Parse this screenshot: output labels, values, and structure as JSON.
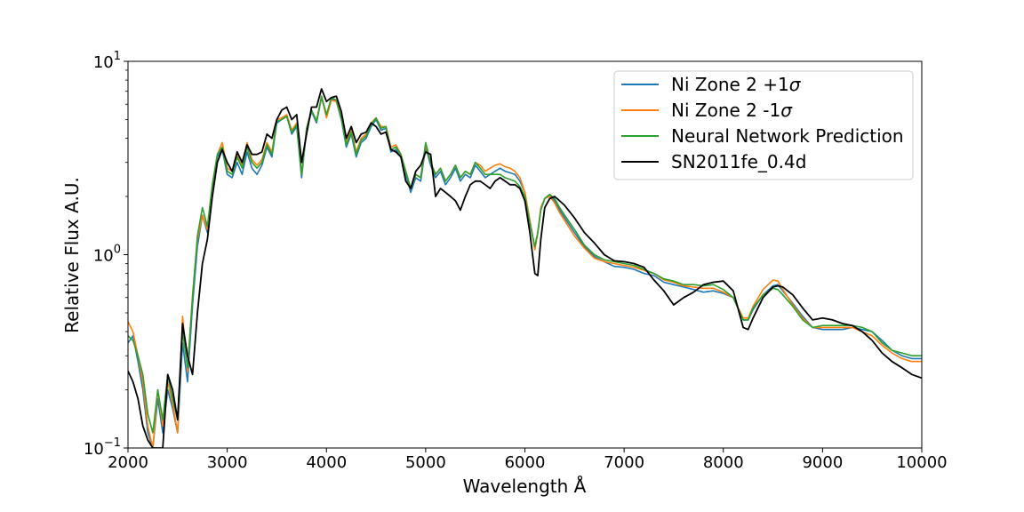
{
  "chart_data": {
    "type": "line",
    "xlabel": "Wavelength Å",
    "ylabel": "Relative Flux A.U.",
    "xlim": [
      2000,
      10000
    ],
    "ylim": [
      0.1,
      10
    ],
    "yscale": "log",
    "grid": false,
    "legend_position": "top-right",
    "x_ticks": [
      "2000",
      "3000",
      "4000",
      "5000",
      "6000",
      "7000",
      "8000",
      "9000",
      "10000"
    ],
    "y_ticks": [
      {
        "base": "10",
        "exp": "−1",
        "value": 0.1
      },
      {
        "base": "10",
        "exp": "0",
        "value": 1
      },
      {
        "base": "10",
        "exp": "1",
        "value": 10
      }
    ],
    "series": [
      {
        "name": "Ni Zone 2 +1σ",
        "label_main": "Ni Zone 2 +1",
        "label_sym": "σ",
        "color": "#1f77b4",
        "x": [
          2000,
          2050,
          2100,
          2150,
          2200,
          2250,
          2300,
          2350,
          2400,
          2450,
          2500,
          2550,
          2600,
          2650,
          2700,
          2750,
          2800,
          2850,
          2900,
          2950,
          3000,
          3050,
          3100,
          3150,
          3200,
          3250,
          3300,
          3350,
          3400,
          3450,
          3500,
          3550,
          3600,
          3650,
          3700,
          3750,
          3800,
          3850,
          3900,
          3950,
          4000,
          4050,
          4100,
          4150,
          4200,
          4250,
          4300,
          4350,
          4400,
          4450,
          4500,
          4550,
          4600,
          4650,
          4700,
          4750,
          4800,
          4850,
          4900,
          4950,
          5000,
          5050,
          5100,
          5150,
          5200,
          5250,
          5300,
          5350,
          5400,
          5450,
          5500,
          5550,
          5600,
          5650,
          5700,
          5750,
          5800,
          5850,
          5900,
          5950,
          6000,
          6050,
          6100,
          6130,
          6160,
          6200,
          6250,
          6300,
          6350,
          6400,
          6500,
          6600,
          6700,
          6800,
          6900,
          7000,
          7100,
          7200,
          7300,
          7400,
          7500,
          7600,
          7700,
          7800,
          7900,
          8000,
          8100,
          8200,
          8250,
          8300,
          8400,
          8500,
          8550,
          8600,
          8700,
          8800,
          8900,
          9000,
          9100,
          9200,
          9300,
          9400,
          9500,
          9600,
          9700,
          9800,
          9900,
          10000
        ],
        "y": [
          0.35,
          0.38,
          0.28,
          0.2,
          0.12,
          0.1,
          0.18,
          0.12,
          0.2,
          0.16,
          0.12,
          0.35,
          0.22,
          0.55,
          1.1,
          1.6,
          1.3,
          2.2,
          3.2,
          3.5,
          2.6,
          2.5,
          3.0,
          2.6,
          3.4,
          2.8,
          2.6,
          2.9,
          3.6,
          3.2,
          4.8,
          5.0,
          5.2,
          4.2,
          4.6,
          2.5,
          4.4,
          5.5,
          4.8,
          6.5,
          5.2,
          6.4,
          6.2,
          5.0,
          3.6,
          4.2,
          3.2,
          3.8,
          4.0,
          4.6,
          5.0,
          4.4,
          4.5,
          3.4,
          3.5,
          3.2,
          2.6,
          2.1,
          2.5,
          2.4,
          3.6,
          2.9,
          2.5,
          2.7,
          2.3,
          2.5,
          2.8,
          2.4,
          2.6,
          2.5,
          2.9,
          2.7,
          2.5,
          2.6,
          2.7,
          2.8,
          2.7,
          2.65,
          2.6,
          2.4,
          2.1,
          1.5,
          1.08,
          1.3,
          1.7,
          1.95,
          2.05,
          1.9,
          1.7,
          1.55,
          1.3,
          1.1,
          0.98,
          0.92,
          0.87,
          0.86,
          0.84,
          0.8,
          0.78,
          0.72,
          0.7,
          0.68,
          0.66,
          0.64,
          0.65,
          0.63,
          0.6,
          0.46,
          0.46,
          0.52,
          0.62,
          0.69,
          0.7,
          0.65,
          0.56,
          0.48,
          0.42,
          0.41,
          0.41,
          0.41,
          0.42,
          0.41,
          0.4,
          0.36,
          0.32,
          0.3,
          0.29,
          0.29
        ]
      },
      {
        "name": "Ni Zone 2 -1σ",
        "label_main": "Ni Zone 2 -1",
        "label_sym": "σ",
        "color": "#ff7f0e",
        "x": [
          2000,
          2050,
          2100,
          2150,
          2200,
          2250,
          2300,
          2350,
          2400,
          2450,
          2500,
          2550,
          2600,
          2650,
          2700,
          2750,
          2800,
          2850,
          2900,
          2950,
          3000,
          3050,
          3100,
          3150,
          3200,
          3250,
          3300,
          3350,
          3400,
          3450,
          3500,
          3550,
          3600,
          3650,
          3700,
          3750,
          3800,
          3850,
          3900,
          3950,
          4000,
          4050,
          4100,
          4150,
          4200,
          4250,
          4300,
          4350,
          4400,
          4450,
          4500,
          4550,
          4600,
          4650,
          4700,
          4750,
          4800,
          4850,
          4900,
          4950,
          5000,
          5050,
          5100,
          5150,
          5200,
          5250,
          5300,
          5350,
          5400,
          5450,
          5500,
          5550,
          5600,
          5650,
          5700,
          5750,
          5800,
          5850,
          5900,
          5950,
          6000,
          6050,
          6100,
          6130,
          6160,
          6200,
          6250,
          6300,
          6350,
          6400,
          6500,
          6600,
          6700,
          6800,
          6900,
          7000,
          7100,
          7200,
          7300,
          7400,
          7500,
          7600,
          7700,
          7800,
          7900,
          8000,
          8100,
          8200,
          8250,
          8300,
          8400,
          8500,
          8550,
          8600,
          8700,
          8800,
          8900,
          9000,
          9100,
          9200,
          9300,
          9400,
          9500,
          9600,
          9700,
          9800,
          9900,
          10000
        ],
        "y": [
          0.45,
          0.4,
          0.3,
          0.22,
          0.13,
          0.1,
          0.2,
          0.13,
          0.22,
          0.17,
          0.12,
          0.48,
          0.25,
          0.62,
          1.2,
          1.6,
          1.35,
          2.3,
          3.3,
          3.8,
          2.8,
          2.7,
          3.3,
          2.9,
          3.8,
          3.1,
          2.9,
          3.1,
          3.8,
          3.4,
          5.0,
          5.1,
          5.3,
          4.4,
          4.8,
          2.6,
          4.5,
          5.6,
          4.9,
          6.6,
          5.1,
          6.3,
          6.2,
          5.1,
          3.8,
          4.4,
          3.4,
          4.0,
          4.2,
          4.8,
          5.1,
          4.6,
          4.6,
          3.6,
          3.7,
          3.3,
          2.7,
          2.2,
          2.6,
          2.5,
          3.7,
          3.0,
          2.6,
          2.8,
          2.4,
          2.6,
          2.9,
          2.5,
          2.7,
          2.6,
          3.0,
          2.9,
          2.7,
          2.8,
          2.9,
          2.95,
          2.85,
          2.8,
          2.7,
          2.5,
          2.1,
          1.5,
          1.06,
          1.3,
          1.75,
          1.95,
          2.0,
          1.85,
          1.65,
          1.5,
          1.25,
          1.08,
          0.96,
          0.92,
          0.9,
          0.88,
          0.86,
          0.83,
          0.8,
          0.74,
          0.72,
          0.69,
          0.68,
          0.67,
          0.67,
          0.64,
          0.6,
          0.47,
          0.47,
          0.54,
          0.66,
          0.74,
          0.73,
          0.66,
          0.55,
          0.47,
          0.42,
          0.42,
          0.42,
          0.42,
          0.42,
          0.4,
          0.38,
          0.34,
          0.31,
          0.29,
          0.28,
          0.28
        ]
      },
      {
        "name": "Neural Network Prediction",
        "color": "#2ca02c",
        "x": [
          2000,
          2050,
          2100,
          2150,
          2200,
          2250,
          2300,
          2350,
          2400,
          2450,
          2500,
          2550,
          2600,
          2650,
          2700,
          2750,
          2800,
          2850,
          2900,
          2950,
          3000,
          3050,
          3100,
          3150,
          3200,
          3250,
          3300,
          3350,
          3400,
          3450,
          3500,
          3550,
          3600,
          3650,
          3700,
          3750,
          3800,
          3850,
          3900,
          3950,
          4000,
          4050,
          4100,
          4150,
          4200,
          4250,
          4300,
          4350,
          4400,
          4450,
          4500,
          4550,
          4600,
          4650,
          4700,
          4750,
          4800,
          4850,
          4900,
          4950,
          5000,
          5050,
          5100,
          5150,
          5200,
          5250,
          5300,
          5350,
          5400,
          5450,
          5500,
          5550,
          5600,
          5650,
          5700,
          5750,
          5800,
          5850,
          5900,
          5950,
          6000,
          6050,
          6100,
          6130,
          6160,
          6200,
          6250,
          6300,
          6350,
          6400,
          6500,
          6600,
          6700,
          6800,
          6900,
          7000,
          7100,
          7200,
          7300,
          7400,
          7500,
          7600,
          7700,
          7800,
          7900,
          8000,
          8100,
          8200,
          8250,
          8300,
          8400,
          8500,
          8550,
          8600,
          8700,
          8800,
          8900,
          9000,
          9100,
          9200,
          9300,
          9400,
          9500,
          9600,
          9700,
          9800,
          9900,
          10000
        ],
        "y": [
          0.38,
          0.36,
          0.3,
          0.24,
          0.15,
          0.12,
          0.2,
          0.14,
          0.24,
          0.18,
          0.14,
          0.4,
          0.26,
          0.6,
          1.25,
          1.75,
          1.4,
          2.3,
          3.3,
          3.6,
          2.7,
          2.6,
          3.2,
          2.8,
          3.6,
          3.0,
          2.8,
          3.0,
          3.7,
          3.3,
          4.9,
          5.0,
          5.2,
          4.3,
          4.7,
          2.6,
          4.5,
          5.6,
          4.9,
          6.6,
          5.3,
          6.5,
          6.3,
          5.1,
          3.7,
          4.3,
          3.3,
          3.9,
          4.1,
          4.7,
          5.1,
          4.5,
          4.6,
          3.5,
          3.6,
          3.3,
          2.7,
          2.2,
          2.6,
          2.5,
          3.8,
          3.0,
          2.6,
          2.8,
          2.4,
          2.6,
          2.9,
          2.5,
          2.7,
          2.6,
          3.0,
          2.8,
          2.6,
          2.6,
          2.6,
          2.6,
          2.5,
          2.45,
          2.4,
          2.25,
          2.0,
          1.45,
          1.1,
          1.3,
          1.7,
          1.95,
          2.05,
          1.95,
          1.75,
          1.6,
          1.35,
          1.12,
          1.0,
          0.94,
          0.92,
          0.9,
          0.88,
          0.84,
          0.8,
          0.75,
          0.73,
          0.7,
          0.7,
          0.69,
          0.7,
          0.66,
          0.6,
          0.46,
          0.46,
          0.53,
          0.62,
          0.67,
          0.66,
          0.62,
          0.54,
          0.46,
          0.42,
          0.43,
          0.43,
          0.43,
          0.43,
          0.42,
          0.4,
          0.35,
          0.32,
          0.31,
          0.3,
          0.3
        ]
      },
      {
        "name": "SN2011fe_0.4d",
        "color": "#000000",
        "x": [
          2000,
          2050,
          2100,
          2150,
          2200,
          2250,
          2300,
          2350,
          2400,
          2450,
          2500,
          2550,
          2600,
          2650,
          2700,
          2750,
          2800,
          2850,
          2900,
          2950,
          3000,
          3050,
          3100,
          3150,
          3200,
          3250,
          3300,
          3350,
          3400,
          3450,
          3500,
          3550,
          3600,
          3650,
          3700,
          3750,
          3800,
          3850,
          3900,
          3950,
          4000,
          4050,
          4100,
          4150,
          4200,
          4250,
          4300,
          4350,
          4400,
          4450,
          4500,
          4550,
          4600,
          4650,
          4700,
          4750,
          4800,
          4850,
          4900,
          4950,
          5000,
          5050,
          5100,
          5150,
          5200,
          5250,
          5300,
          5350,
          5400,
          5450,
          5500,
          5550,
          5600,
          5650,
          5700,
          5750,
          5800,
          5850,
          5900,
          5950,
          6000,
          6050,
          6100,
          6130,
          6160,
          6200,
          6250,
          6300,
          6350,
          6400,
          6500,
          6600,
          6700,
          6800,
          6900,
          7000,
          7100,
          7200,
          7300,
          7400,
          7500,
          7600,
          7700,
          7800,
          7900,
          8000,
          8100,
          8200,
          8250,
          8300,
          8400,
          8500,
          8550,
          8600,
          8700,
          8800,
          8900,
          9000,
          9100,
          9200,
          9300,
          9400,
          9500,
          9600,
          9700,
          9800,
          9900,
          10000
        ],
        "y": [
          0.25,
          0.22,
          0.18,
          0.13,
          0.11,
          0.1,
          0.1,
          0.1,
          0.24,
          0.2,
          0.14,
          0.44,
          0.3,
          0.24,
          0.5,
          0.9,
          1.2,
          2.0,
          3.0,
          3.5,
          3.0,
          2.7,
          3.4,
          3.0,
          3.7,
          3.3,
          3.3,
          3.4,
          4.2,
          4.0,
          5.0,
          5.6,
          5.8,
          5.0,
          5.3,
          3.0,
          4.2,
          5.8,
          5.8,
          7.2,
          6.2,
          6.5,
          6.6,
          5.5,
          4.0,
          4.6,
          3.8,
          4.2,
          4.3,
          4.8,
          4.6,
          4.2,
          4.3,
          3.5,
          3.4,
          3.2,
          2.4,
          2.2,
          2.7,
          2.9,
          3.4,
          3.3,
          2.0,
          2.2,
          2.1,
          2.0,
          1.9,
          1.7,
          2.0,
          2.3,
          2.4,
          2.4,
          2.3,
          2.2,
          2.4,
          2.5,
          2.4,
          2.3,
          2.3,
          2.2,
          1.9,
          1.3,
          0.8,
          0.78,
          1.2,
          1.75,
          1.95,
          2.0,
          1.9,
          1.8,
          1.55,
          1.3,
          1.15,
          1.0,
          0.93,
          0.92,
          0.9,
          0.86,
          0.74,
          0.65,
          0.55,
          0.6,
          0.64,
          0.7,
          0.72,
          0.73,
          0.65,
          0.42,
          0.41,
          0.47,
          0.6,
          0.68,
          0.69,
          0.68,
          0.62,
          0.53,
          0.46,
          0.47,
          0.46,
          0.44,
          0.43,
          0.4,
          0.36,
          0.31,
          0.28,
          0.26,
          0.24,
          0.23
        ]
      }
    ]
  }
}
